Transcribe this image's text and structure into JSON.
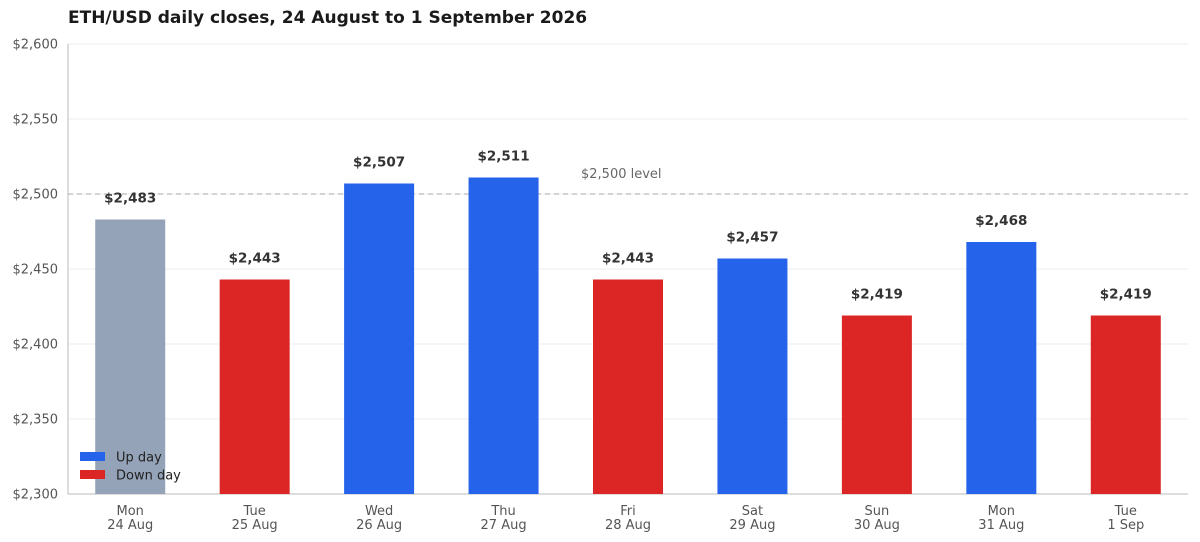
{
  "chart_data": {
    "type": "bar",
    "title": "ETH/USD daily closes, 24 August to 1 September 2026",
    "categories": [
      [
        "Mon",
        "24 Aug"
      ],
      [
        "Tue",
        "25 Aug"
      ],
      [
        "Wed",
        "26 Aug"
      ],
      [
        "Thu",
        "27 Aug"
      ],
      [
        "Fri",
        "28 Aug"
      ],
      [
        "Sat",
        "29 Aug"
      ],
      [
        "Sun",
        "30 Aug"
      ],
      [
        "Mon",
        "31 Aug"
      ],
      [
        "Tue",
        "1 Sep"
      ]
    ],
    "values": [
      2483,
      2443,
      2507,
      2511,
      2443,
      2457,
      2419,
      2468,
      2419
    ],
    "data_labels": [
      "$2,483",
      "$2,443",
      "$2,507",
      "$2,511",
      "$2,443",
      "$2,457",
      "$2,419",
      "$2,468",
      "$2,419"
    ],
    "bar_kinds": [
      "baseline",
      "down",
      "up",
      "up",
      "down",
      "up",
      "down",
      "up",
      "down"
    ],
    "ylim": [
      2300,
      2600
    ],
    "y_ticks": [
      2300,
      2350,
      2400,
      2450,
      2500,
      2550,
      2600
    ],
    "y_tick_labels": [
      "$2,300",
      "$2,350",
      "$2,400",
      "$2,450",
      "$2,500",
      "$2,550",
      "$2,600"
    ],
    "reference_line": {
      "value": 2500,
      "label": "$2,500 level"
    },
    "grid": true,
    "legend": {
      "placement": "bottom-left",
      "entries": [
        {
          "label": "Up day",
          "kind": "up"
        },
        {
          "label": "Down day",
          "kind": "down"
        }
      ]
    },
    "colors": {
      "up": "#2563eb",
      "down": "#dc2626",
      "baseline": "#94a3b8",
      "grid": "#eeeeee",
      "axis": "#bbbbbb",
      "reference": "#aaaaaa"
    }
  }
}
